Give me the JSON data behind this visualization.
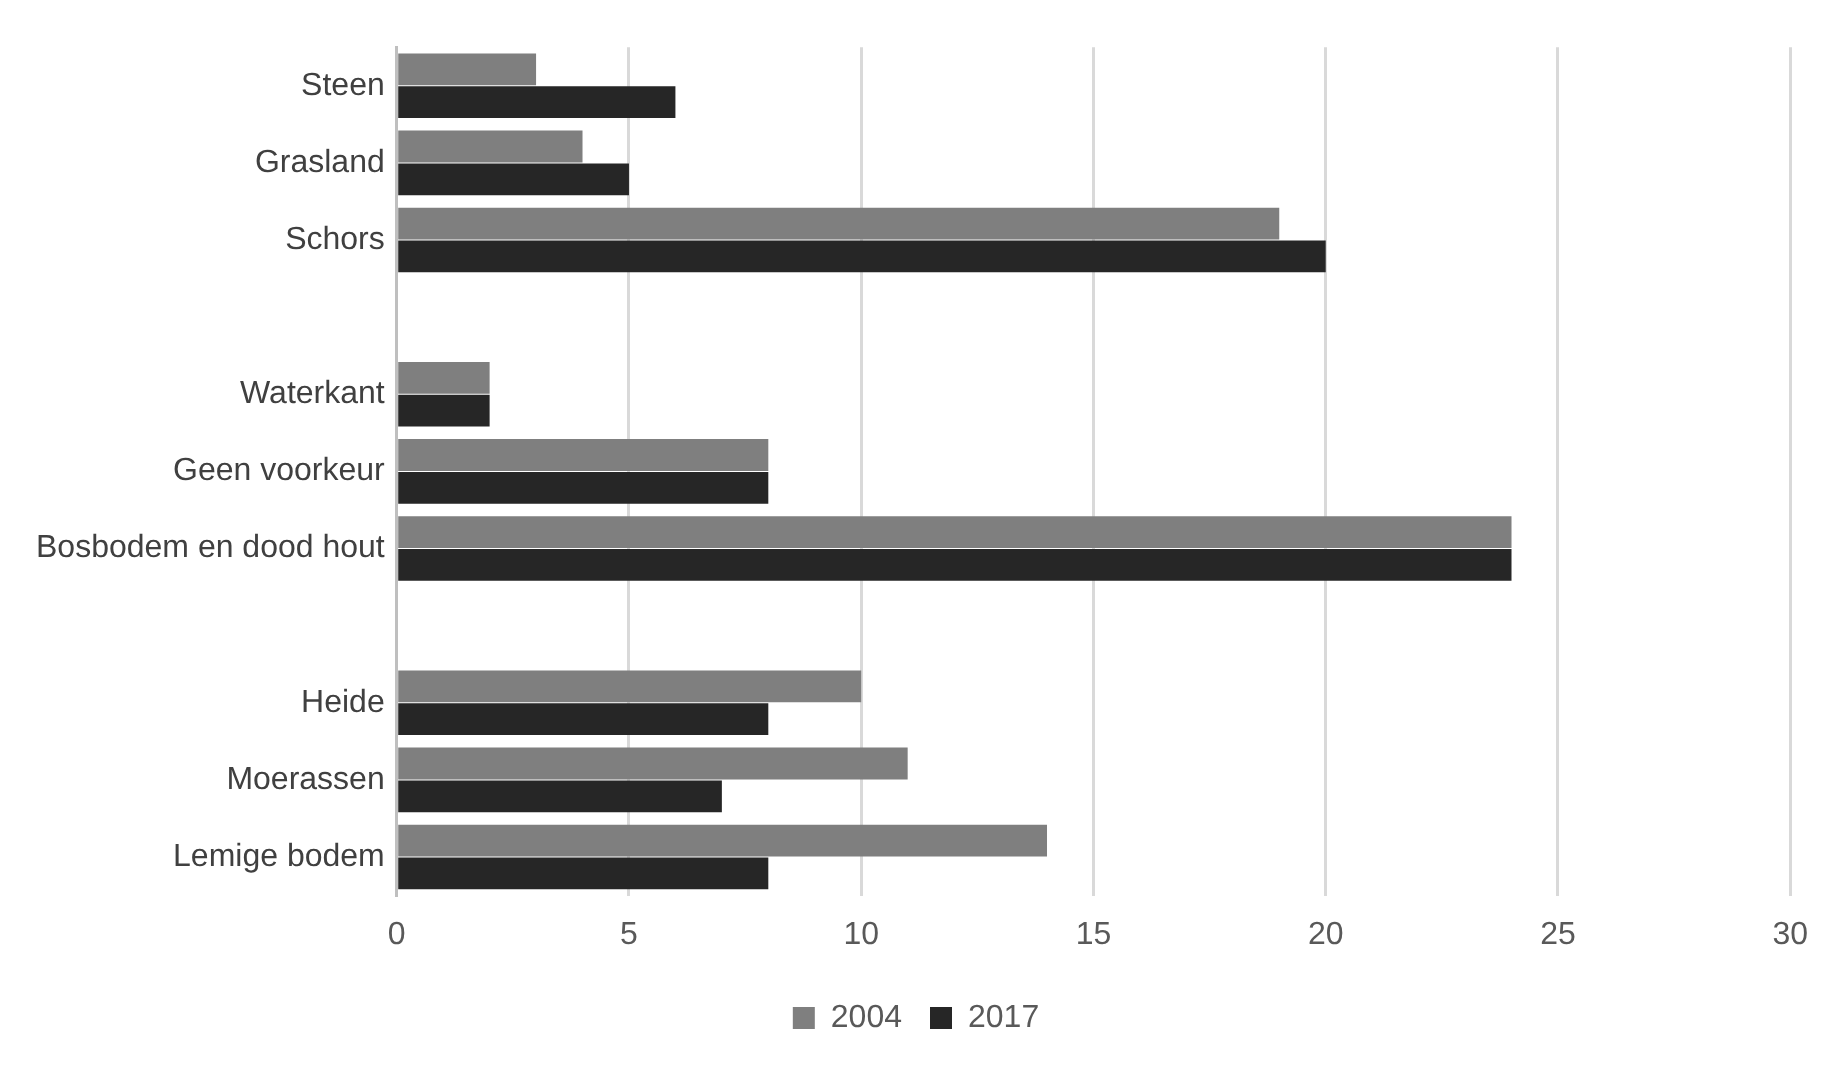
{
  "chart_data": {
    "type": "bar",
    "orientation": "horizontal",
    "categories": [
      "Steen",
      "Grasland",
      "Schors",
      null,
      "Waterkant",
      "Geen voorkeur",
      "Bosbodem en dood hout",
      null,
      "Heide",
      "Moerassen",
      "Lemige bodem"
    ],
    "series": [
      {
        "name": "2004",
        "color": "#7f7f7f",
        "values": [
          3,
          4,
          19,
          null,
          2,
          8,
          24,
          null,
          10,
          11,
          14
        ]
      },
      {
        "name": "2017",
        "color": "#262626",
        "values": [
          6,
          5,
          20,
          null,
          2,
          8,
          24,
          null,
          8,
          7,
          8
        ]
      }
    ],
    "xlim": [
      0,
      30
    ],
    "xticks": [
      0,
      5,
      10,
      15,
      20,
      25,
      30
    ],
    "grid": "x",
    "legend": "bottom"
  }
}
